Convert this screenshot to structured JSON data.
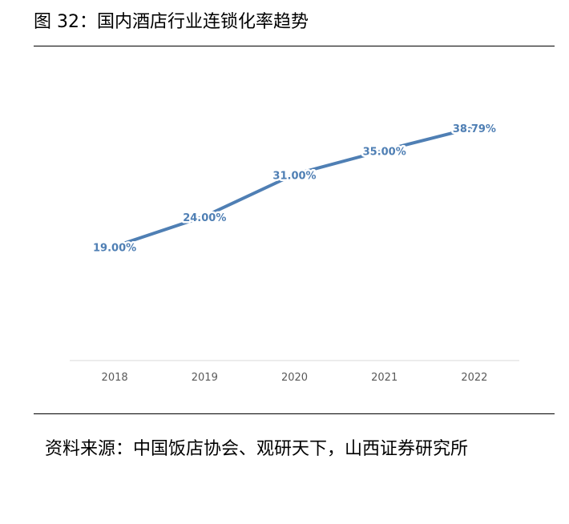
{
  "figure": {
    "title": "图 32：国内酒店行业连锁化率趋势",
    "source": "资料来源：中国饭店协会、观研天下，山西证券研究所"
  },
  "chart_data": {
    "type": "line",
    "title": "",
    "xlabel": "",
    "ylabel": "",
    "categories": [
      "2018",
      "2019",
      "2020",
      "2021",
      "2022"
    ],
    "series": [
      {
        "values": [
          19.0,
          24.0,
          31.0,
          35.0,
          38.79
        ],
        "labels": [
          "19.00%",
          "24.00%",
          "31.00%",
          "35.00%",
          "38.79%"
        ]
      }
    ],
    "ylim": [
      0,
      45
    ],
    "grid": false,
    "legend": "none",
    "colors": {
      "line": "#4f7fb4",
      "data_label": "#4f7fb4",
      "axis": "#d9d9d9",
      "tick_label": "#595959"
    }
  }
}
